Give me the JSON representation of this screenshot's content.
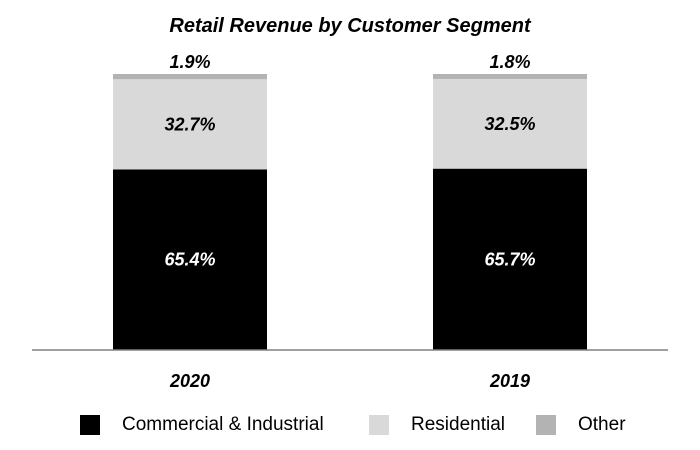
{
  "chart_data": {
    "type": "bar",
    "stacked": true,
    "title": "Retail Revenue by Customer Segment",
    "categories": [
      "2020",
      "2019"
    ],
    "series": [
      {
        "name": "Commercial & Industrial",
        "color": "#000000",
        "label_color": "#ffffff",
        "values": [
          65.4,
          65.7
        ],
        "labels": [
          "65.4%",
          "65.7%"
        ]
      },
      {
        "name": "Residential",
        "color": "#d9d9d9",
        "label_color": "#000000",
        "values": [
          32.7,
          32.5
        ],
        "labels": [
          "32.7%",
          "32.5%"
        ]
      },
      {
        "name": "Other",
        "color": "#b3b3b3",
        "label_color": "#000000",
        "values": [
          1.9,
          1.8
        ],
        "labels": [
          "1.9%",
          "1.8%"
        ]
      }
    ],
    "xlabel": "",
    "ylabel": "",
    "ylim": [
      0,
      100
    ],
    "grid": false,
    "legend_position": "bottom"
  }
}
